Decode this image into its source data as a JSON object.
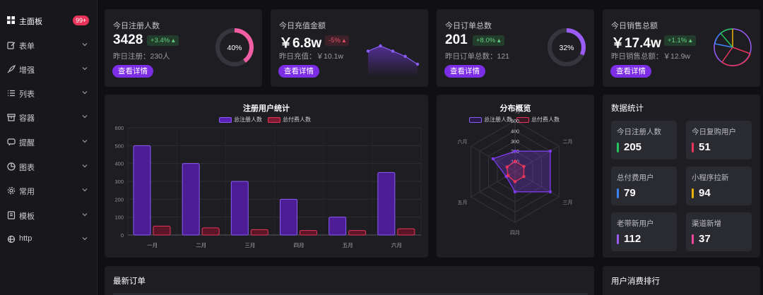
{
  "sidebar": {
    "items": [
      {
        "label": "主面板",
        "icon": "dashboard-icon",
        "badge": "99+"
      },
      {
        "label": "表单",
        "icon": "form-edit-icon"
      },
      {
        "label": "增强",
        "icon": "rocket-icon"
      },
      {
        "label": "列表",
        "icon": "list-icon"
      },
      {
        "label": "容器",
        "icon": "box-icon"
      },
      {
        "label": "提醒",
        "icon": "chat-bubble-icon"
      },
      {
        "label": "图表",
        "icon": "pie-chart-icon"
      },
      {
        "label": "常用",
        "icon": "gear-icon"
      },
      {
        "label": "模板",
        "icon": "template-icon"
      },
      {
        "label": "http",
        "icon": "globe-icon"
      }
    ]
  },
  "stats": [
    {
      "title": "今日注册人数",
      "value": "3428",
      "delta": "+3.4%",
      "trend": "up",
      "sub": "昨日注册：230人",
      "button": "查看详情",
      "ring_percent": 40,
      "ring_label": "40%",
      "ring_color": "#f25ea3"
    },
    {
      "title": "今日充值金额",
      "value": "￥6.8w",
      "delta": "-5%",
      "trend": "down",
      "sub": "昨日充值：￥10.1w",
      "button": "查看详情",
      "sparkline": [
        5,
        7,
        5,
        3,
        0
      ]
    },
    {
      "title": "今日订单总数",
      "value": "201",
      "delta": "+8.0%",
      "trend": "up",
      "sub": "昨日订单总数：121",
      "button": "查看详情",
      "ring_percent": 32,
      "ring_label": "32%",
      "ring_color": "#9b5cf6"
    },
    {
      "title": "今日销售总额",
      "value": "￥17.4w",
      "delta": "+1.1%",
      "trend": "up",
      "sub": "昨日销售总额：￥12.9w",
      "button": "查看详情",
      "pie_colors": [
        "#9b5cf6",
        "#e8345b",
        "#3b82f6",
        "#22c55e",
        "#eab308"
      ]
    }
  ],
  "bar_panel": {
    "chart_data": {
      "type": "bar",
      "title": "注册用户统计",
      "categories": [
        "一月",
        "二月",
        "三月",
        "四月",
        "五月",
        "六月"
      ],
      "series": [
        {
          "name": "总注册人数",
          "values": [
            500,
            400,
            300,
            200,
            100,
            350
          ],
          "color": "#7c3aed"
        },
        {
          "name": "总付费人数",
          "values": [
            50,
            40,
            30,
            25,
            25,
            35
          ],
          "color": "#e8345b"
        }
      ],
      "ylim": [
        0,
        600
      ],
      "yticks": [
        0,
        100,
        200,
        300,
        400,
        500,
        600
      ],
      "grid": true,
      "legend": "top-center"
    }
  },
  "radar_panel": {
    "chart_data": {
      "type": "radar",
      "title": "分布概览",
      "axes": [
        "一月",
        "二月",
        "三月",
        "四月",
        "五月",
        "六月"
      ],
      "max": 500,
      "rings": [
        100,
        200,
        300,
        400,
        500
      ],
      "series": [
        {
          "name": "总注册人数",
          "values": [
            200,
            400,
            400,
            200,
            100,
            250
          ],
          "color": "#7c3aed"
        },
        {
          "name": "总付费人数",
          "values": [
            100,
            100,
            100,
            100,
            80,
            90
          ],
          "color": "#e8345b"
        }
      ],
      "legend": "top-center"
    }
  },
  "data_panel": {
    "title": "数据统计",
    "items": [
      {
        "label": "今日注册人数",
        "value": "205",
        "color": "#22c55e"
      },
      {
        "label": "今日复购用户",
        "value": "51",
        "color": "#e8345b"
      },
      {
        "label": "总付费用户",
        "value": "79",
        "color": "#3b82f6"
      },
      {
        "label": "小程序拉新",
        "value": "94",
        "color": "#eab308"
      },
      {
        "label": "老带新用户",
        "value": "112",
        "color": "#9b5cf6"
      },
      {
        "label": "渠道新增",
        "value": "37",
        "color": "#ec4899"
      }
    ]
  },
  "orders_panel": {
    "title": "最新订单"
  },
  "ranking_panel": {
    "title": "用户消费排行"
  }
}
